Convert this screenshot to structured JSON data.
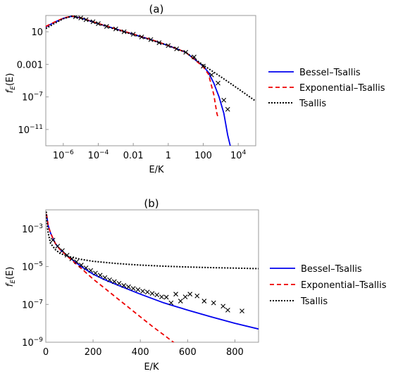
{
  "chart_data": [
    {
      "type": "line",
      "title": "(a)",
      "xlabel": "E/K",
      "ylabel": "f_E(E)",
      "x_scale": "log",
      "y_scale": "log",
      "xlim": [
        1e-07,
        100000
      ],
      "ylim": [
        1e-13,
        1000
      ],
      "x_ticks": [
        {
          "value": 1e-06,
          "base": "10",
          "exp": "−6"
        },
        {
          "value": 0.0001,
          "base": "10",
          "exp": "−4"
        },
        {
          "value": 0.01,
          "label": "0.01"
        },
        {
          "value": 1,
          "label": "1"
        },
        {
          "value": 100,
          "label": "100"
        },
        {
          "value": 10000,
          "base": "10",
          "exp": "4"
        }
      ],
      "y_ticks": [
        {
          "value": 10,
          "label": "10"
        },
        {
          "value": 0.001,
          "label": "0.001"
        },
        {
          "value": 1e-07,
          "base": "10",
          "exp": "−7"
        },
        {
          "value": 1e-11,
          "base": "10",
          "exp": "−11"
        }
      ],
      "legend_position": "right",
      "series": [
        {
          "name": "Bessel–Tsallis",
          "style": "solid",
          "color": "#0000ee",
          "x": [
            1e-07,
            3e-07,
            1e-06,
            3e-06,
            1e-05,
            0.0001,
            0.001,
            0.01,
            0.1,
            1,
            10,
            100,
            200,
            400,
            800,
            1500,
            2500,
            3500
          ],
          "y": [
            40,
            140,
            450,
            800,
            500,
            100,
            22,
            5,
            1.1,
            0.2,
            0.03,
            0.0006,
            0.0001,
            5e-06,
            1e-07,
            1e-09,
            2e-12,
            1e-13
          ]
        },
        {
          "name": "Exponential–Tsallis",
          "style": "dashed",
          "color": "#ee0000",
          "x": [
            1e-07,
            3e-07,
            1e-06,
            3e-06,
            1e-05,
            0.0001,
            0.001,
            0.01,
            0.1,
            1,
            10,
            100,
            200,
            400,
            600,
            700
          ],
          "y": [
            45,
            150,
            470,
            850,
            520,
            105,
            23,
            5.2,
            1.15,
            0.21,
            0.03,
            0.0005,
            6e-05,
            2e-07,
            1e-09,
            3e-10
          ]
        },
        {
          "name": "Tsallis",
          "style": "dotted",
          "color": "#000000",
          "x": [
            1e-07,
            3e-07,
            1e-06,
            3e-06,
            1e-05,
            0.0001,
            0.001,
            0.01,
            0.1,
            1,
            10,
            100,
            1000,
            10000,
            100000
          ],
          "y": [
            25,
            100,
            400,
            800,
            500,
            95,
            20,
            4.5,
            1,
            0.2,
            0.03,
            0.0008,
            3e-05,
            1e-06,
            3e-08
          ]
        },
        {
          "name": "data",
          "style": "marker-x",
          "color": "#000000",
          "x": [
            5e-06,
            1e-05,
            2e-05,
            5e-05,
            0.0001,
            0.0003,
            0.001,
            0.003,
            0.01,
            0.03,
            0.1,
            0.3,
            1,
            3,
            10,
            30,
            100,
            300,
            700,
            1500,
            2500
          ],
          "y": [
            700,
            500,
            300,
            170,
            100,
            45,
            22,
            10,
            5,
            2.3,
            1.1,
            0.45,
            0.2,
            0.08,
            0.03,
            0.008,
            0.0006,
            5e-05,
            5e-06,
            4e-08,
            3e-09
          ]
        }
      ]
    },
    {
      "type": "line",
      "title": "(b)",
      "xlabel": "E/K",
      "ylabel": "f_E(E)",
      "x_scale": "linear",
      "y_scale": "log",
      "xlim": [
        0,
        900
      ],
      "ylim": [
        1e-09,
        0.01
      ],
      "x_ticks": [
        {
          "value": 0,
          "label": "0"
        },
        {
          "value": 200,
          "label": "200"
        },
        {
          "value": 400,
          "label": "400"
        },
        {
          "value": 600,
          "label": "600"
        },
        {
          "value": 800,
          "label": "800"
        }
      ],
      "y_ticks": [
        {
          "value": 0.001,
          "base": "10",
          "exp": "−3"
        },
        {
          "value": 1e-05,
          "base": "10",
          "exp": "−5"
        },
        {
          "value": 1e-07,
          "base": "10",
          "exp": "−7"
        },
        {
          "value": 1e-09,
          "base": "10",
          "exp": "−9"
        }
      ],
      "legend_position": "right",
      "series": [
        {
          "name": "Bessel–Tsallis",
          "style": "solid",
          "color": "#0000ee",
          "x": [
            3,
            10,
            20,
            40,
            60,
            100,
            150,
            200,
            250,
            300,
            400,
            500,
            600,
            700,
            800,
            900
          ],
          "y": [
            0.006,
            0.0015,
            0.0006,
            0.00017,
            8e-05,
            3e-05,
            1e-05,
            4e-06,
            2e-06,
            1.1e-06,
            3.5e-07,
            1.2e-07,
            5e-08,
            2.2e-08,
            1e-08,
            5e-09
          ]
        },
        {
          "name": "Exponential–Tsallis",
          "style": "dashed",
          "color": "#ee0000",
          "x": [
            3,
            10,
            20,
            40,
            60,
            100,
            150,
            200,
            250,
            300,
            350,
            400,
            450,
            500,
            550,
            590
          ],
          "y": [
            0.006,
            0.0015,
            0.0006,
            0.00017,
            8e-05,
            2.8e-05,
            8e-06,
            2.2e-06,
            7e-07,
            2.2e-07,
            7e-08,
            2.2e-08,
            7e-09,
            2.4e-09,
            8e-10,
            3.5e-10
          ]
        },
        {
          "name": "Tsallis",
          "style": "dotted",
          "color": "#000000",
          "x": [
            2,
            5,
            10,
            20,
            40,
            60,
            100,
            150,
            200,
            300,
            400,
            500,
            600,
            700,
            800,
            900
          ],
          "y": [
            0.008,
            0.002,
            0.0006,
            0.00017,
            8e-05,
            5e-05,
            3.3e-05,
            2.4e-05,
            1.9e-05,
            1.45e-05,
            1.2e-05,
            1.05e-05,
            9.5e-06,
            8.8e-06,
            8.3e-06,
            7.8e-06
          ]
        },
        {
          "name": "data",
          "style": "marker-x",
          "color": "#000000",
          "x": [
            30,
            50,
            70,
            90,
            110,
            130,
            150,
            170,
            190,
            210,
            230,
            250,
            270,
            290,
            310,
            330,
            350,
            370,
            390,
            410,
            430,
            450,
            470,
            490,
            510,
            530,
            550,
            570,
            590,
            610,
            640,
            670,
            710,
            750,
            770,
            830
          ],
          "y": [
            0.00025,
            0.00012,
            7e-05,
            4e-05,
            2.6e-05,
            1.8e-05,
            1.2e-05,
            8.5e-06,
            6.2e-06,
            4.5e-06,
            3.5e-06,
            2.6e-06,
            2e-06,
            1.6e-06,
            1.3e-06,
            1e-06,
            8.5e-07,
            7e-07,
            6e-07,
            5e-07,
            4.5e-07,
            3.8e-07,
            3.2e-07,
            2.5e-07,
            2.4e-07,
            1.2e-07,
            3.5e-07,
            1.5e-07,
            2.5e-07,
            3.5e-07,
            2.8e-07,
            1.5e-07,
            1.2e-07,
            8e-08,
            5e-08,
            4.5e-08
          ]
        }
      ]
    }
  ]
}
